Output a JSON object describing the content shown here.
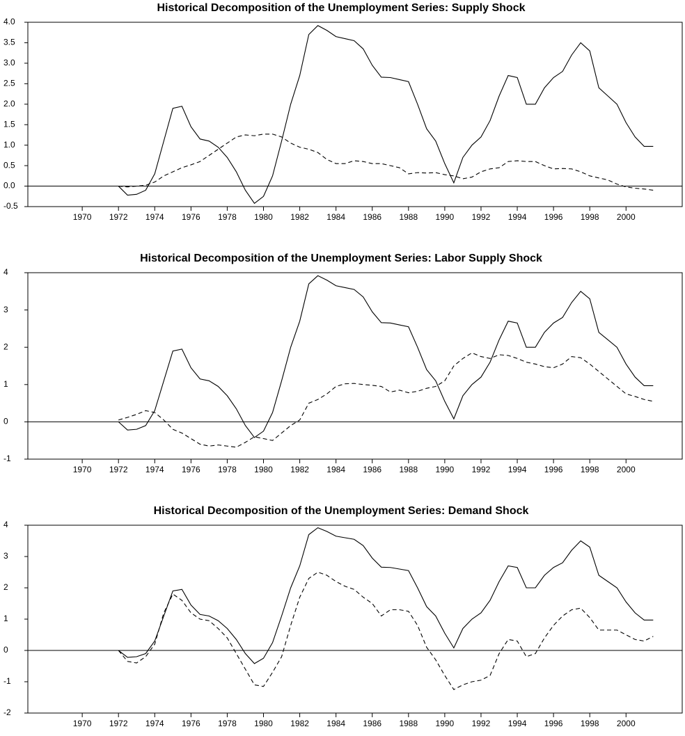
{
  "chart_data": [
    {
      "type": "line",
      "title": "Historical Decomposition of the Unemployment Series: Supply Shock",
      "x": [
        1972,
        1972.5,
        1973,
        1973.5,
        1974,
        1974.5,
        1975,
        1975.5,
        1976,
        1976.5,
        1977,
        1977.5,
        1978,
        1978.5,
        1979,
        1979.5,
        1980,
        1980.5,
        1981,
        1981.5,
        1982,
        1982.5,
        1983,
        1983.5,
        1984,
        1984.5,
        1985,
        1985.5,
        1986,
        1986.5,
        1987,
        1987.5,
        1988,
        1988.5,
        1989,
        1989.5,
        1990,
        1990.5,
        1991,
        1991.5,
        1992,
        1992.5,
        1993,
        1993.5,
        1994,
        1994.5,
        1995,
        1995.5,
        1996,
        1996.5,
        1997,
        1997.5,
        1998,
        1998.5,
        1999,
        1999.5,
        2000,
        2000.5,
        2001,
        2001.5
      ],
      "series": [
        {
          "color": "#000000",
          "style": "solid",
          "values": [
            0,
            -0.22,
            -0.2,
            -0.1,
            0.3,
            1.1,
            1.9,
            1.95,
            1.45,
            1.15,
            1.1,
            0.95,
            0.7,
            0.35,
            -0.1,
            -0.42,
            -0.25,
            0.25,
            1.1,
            2.0,
            2.7,
            3.7,
            3.92,
            3.8,
            3.65,
            3.6,
            3.55,
            3.35,
            2.95,
            2.66,
            2.65,
            2.6,
            2.55,
            2.0,
            1.4,
            1.1,
            0.55,
            0.08,
            0.7,
            1.0,
            1.2,
            1.6,
            2.2,
            2.7,
            2.65,
            2.0,
            2.0,
            2.4,
            2.65,
            2.8,
            3.2,
            3.5,
            3.3,
            2.4,
            2.2,
            2.0,
            1.55,
            1.2,
            0.97,
            0.97
          ]
        },
        {
          "color": "#000000",
          "style": "dashed",
          "values": [
            0,
            -0.02,
            0,
            0.02,
            0.1,
            0.25,
            0.35,
            0.45,
            0.52,
            0.6,
            0.75,
            0.9,
            1.05,
            1.2,
            1.25,
            1.23,
            1.27,
            1.27,
            1.2,
            1.05,
            0.95,
            0.9,
            0.82,
            0.65,
            0.55,
            0.55,
            0.62,
            0.6,
            0.55,
            0.55,
            0.5,
            0.45,
            0.3,
            0.33,
            0.32,
            0.33,
            0.28,
            0.25,
            0.18,
            0.22,
            0.35,
            0.42,
            0.45,
            0.6,
            0.62,
            0.6,
            0.6,
            0.5,
            0.42,
            0.43,
            0.42,
            0.35,
            0.25,
            0.2,
            0.15,
            0.05,
            -0.02,
            -0.05,
            -0.07,
            -0.1
          ]
        }
      ],
      "xlim": [
        1967,
        2003.1
      ],
      "xticks": [
        1970,
        1972,
        1974,
        1976,
        1978,
        1980,
        1982,
        1984,
        1986,
        1988,
        1990,
        1992,
        1994,
        1996,
        1998,
        2000
      ],
      "ylim": [
        -0.5,
        4.0
      ],
      "yticks": [
        {
          "value": -0.5,
          "label": "-0.5"
        },
        {
          "value": 0,
          "label": "0.0"
        },
        0.5,
        {
          "value": 1,
          "label": "1.0"
        },
        1.5,
        {
          "value": 2,
          "label": "2.0"
        },
        2.5,
        {
          "value": 3,
          "label": "3.0"
        },
        3.5,
        {
          "value": 4,
          "label": "4.0"
        }
      ]
    },
    {
      "type": "line",
      "title": "Historical Decomposition of the Unemployment Series: Labor Supply Shock",
      "x": [
        1972,
        1972.5,
        1973,
        1973.5,
        1974,
        1974.5,
        1975,
        1975.5,
        1976,
        1976.5,
        1977,
        1977.5,
        1978,
        1978.5,
        1979,
        1979.5,
        1980,
        1980.5,
        1981,
        1981.5,
        1982,
        1982.5,
        1983,
        1983.5,
        1984,
        1984.5,
        1985,
        1985.5,
        1986,
        1986.5,
        1987,
        1987.5,
        1988,
        1988.5,
        1989,
        1989.5,
        1990,
        1990.5,
        1991,
        1991.5,
        1992,
        1992.5,
        1993,
        1993.5,
        1994,
        1994.5,
        1995,
        1995.5,
        1996,
        1996.5,
        1997,
        1997.5,
        1998,
        1998.5,
        1999,
        1999.5,
        2000,
        2000.5,
        2001,
        2001.5
      ],
      "series": [
        {
          "color": "#000000",
          "style": "solid",
          "values": [
            0,
            -0.22,
            -0.2,
            -0.1,
            0.3,
            1.1,
            1.9,
            1.95,
            1.45,
            1.15,
            1.1,
            0.95,
            0.7,
            0.35,
            -0.1,
            -0.42,
            -0.25,
            0.25,
            1.1,
            2.0,
            2.7,
            3.7,
            3.92,
            3.8,
            3.65,
            3.6,
            3.55,
            3.35,
            2.95,
            2.66,
            2.65,
            2.6,
            2.55,
            2.0,
            1.4,
            1.1,
            0.55,
            0.08,
            0.7,
            1.0,
            1.2,
            1.6,
            2.2,
            2.7,
            2.65,
            2.0,
            2.0,
            2.4,
            2.65,
            2.8,
            3.2,
            3.5,
            3.3,
            2.4,
            2.2,
            2.0,
            1.55,
            1.2,
            0.97,
            0.97
          ]
        },
        {
          "color": "#000000",
          "style": "dashed",
          "values": [
            0.05,
            0.12,
            0.2,
            0.3,
            0.25,
            0.05,
            -0.2,
            -0.3,
            -0.45,
            -0.6,
            -0.65,
            -0.62,
            -0.65,
            -0.68,
            -0.55,
            -0.4,
            -0.45,
            -0.5,
            -0.3,
            -0.1,
            0.05,
            0.5,
            0.6,
            0.75,
            0.95,
            1.02,
            1.03,
            1.0,
            0.98,
            0.95,
            0.8,
            0.85,
            0.78,
            0.82,
            0.9,
            0.95,
            1.1,
            1.5,
            1.7,
            1.85,
            1.75,
            1.7,
            1.8,
            1.78,
            1.7,
            1.6,
            1.55,
            1.48,
            1.45,
            1.55,
            1.75,
            1.72,
            1.55,
            1.35,
            1.15,
            0.95,
            0.75,
            0.68,
            0.6,
            0.55
          ]
        }
      ],
      "xlim": [
        1967,
        2003.1
      ],
      "xticks": [
        1970,
        1972,
        1974,
        1976,
        1978,
        1980,
        1982,
        1984,
        1986,
        1988,
        1990,
        1992,
        1994,
        1996,
        1998,
        2000
      ],
      "ylim": [
        -1,
        4
      ],
      "yticks": [
        -1,
        0,
        1,
        2,
        3,
        4
      ]
    },
    {
      "type": "line",
      "title": "Historical Decomposition of the Unemployment Series: Demand Shock",
      "x": [
        1972,
        1972.5,
        1973,
        1973.5,
        1974,
        1974.5,
        1975,
        1975.5,
        1976,
        1976.5,
        1977,
        1977.5,
        1978,
        1978.5,
        1979,
        1979.5,
        1980,
        1980.5,
        1981,
        1981.5,
        1982,
        1982.5,
        1983,
        1983.5,
        1984,
        1984.5,
        1985,
        1985.5,
        1986,
        1986.5,
        1987,
        1987.5,
        1988,
        1988.5,
        1989,
        1989.5,
        1990,
        1990.5,
        1991,
        1991.5,
        1992,
        1992.5,
        1993,
        1993.5,
        1994,
        1994.5,
        1995,
        1995.5,
        1996,
        1996.5,
        1997,
        1997.5,
        1998,
        1998.5,
        1999,
        1999.5,
        2000,
        2000.5,
        2001,
        2001.5
      ],
      "series": [
        {
          "color": "#000000",
          "style": "solid",
          "values": [
            0,
            -0.22,
            -0.2,
            -0.1,
            0.3,
            1.1,
            1.9,
            1.95,
            1.45,
            1.15,
            1.1,
            0.95,
            0.7,
            0.35,
            -0.1,
            -0.42,
            -0.25,
            0.25,
            1.1,
            2.0,
            2.7,
            3.7,
            3.92,
            3.8,
            3.65,
            3.6,
            3.55,
            3.35,
            2.95,
            2.66,
            2.65,
            2.6,
            2.55,
            2.0,
            1.4,
            1.1,
            0.55,
            0.08,
            0.7,
            1.0,
            1.2,
            1.6,
            2.2,
            2.7,
            2.65,
            2.0,
            2.0,
            2.4,
            2.65,
            2.8,
            3.2,
            3.5,
            3.3,
            2.4,
            2.2,
            2.0,
            1.55,
            1.2,
            0.97,
            0.97
          ]
        },
        {
          "color": "#000000",
          "style": "dashed",
          "values": [
            0,
            -0.35,
            -0.4,
            -0.2,
            0.2,
            1.2,
            1.8,
            1.6,
            1.2,
            1.0,
            0.95,
            0.7,
            0.4,
            -0.1,
            -0.6,
            -1.1,
            -1.15,
            -0.7,
            -0.2,
            0.8,
            1.7,
            2.3,
            2.5,
            2.4,
            2.2,
            2.05,
            1.95,
            1.7,
            1.5,
            1.1,
            1.3,
            1.3,
            1.25,
            0.8,
            0.1,
            -0.3,
            -0.8,
            -1.25,
            -1.1,
            -1.0,
            -0.95,
            -0.8,
            -0.1,
            0.35,
            0.3,
            -0.2,
            -0.1,
            0.4,
            0.8,
            1.1,
            1.3,
            1.35,
            1.05,
            0.65,
            0.65,
            0.65,
            0.5,
            0.35,
            0.3,
            0.45
          ]
        }
      ],
      "xlim": [
        1967,
        2003.1
      ],
      "xticks": [
        1970,
        1972,
        1974,
        1976,
        1978,
        1980,
        1982,
        1984,
        1986,
        1988,
        1990,
        1992,
        1994,
        1996,
        1998,
        2000
      ],
      "ylim": [
        -2,
        4
      ],
      "yticks": [
        -2,
        -1,
        0,
        1,
        2,
        3,
        4
      ]
    }
  ]
}
